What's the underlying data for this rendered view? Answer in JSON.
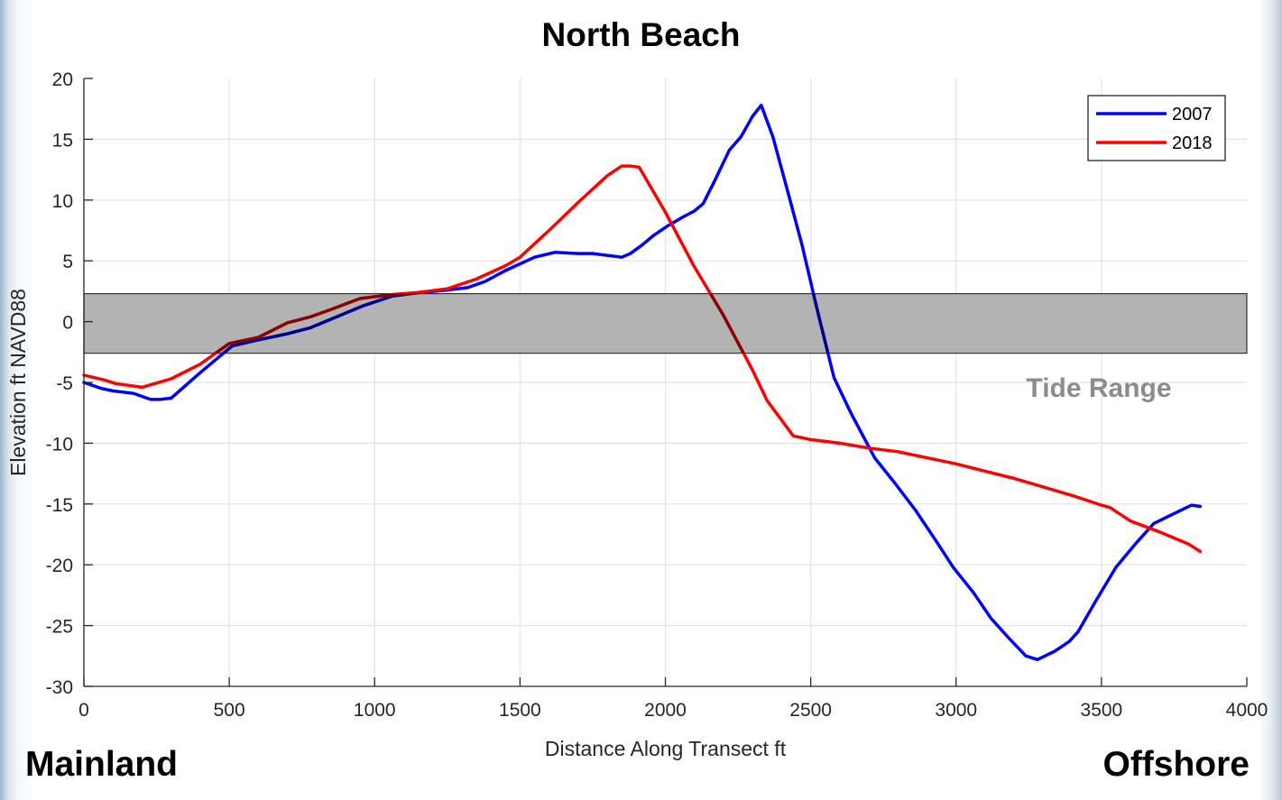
{
  "title": "North Beach",
  "left_corner_label": "Mainland",
  "right_corner_label": "Offshore",
  "chart_data": {
    "type": "line",
    "xlabel": "Distance Along Transect ft",
    "ylabel": "Elevation ft NAVD88",
    "xlim": [
      0,
      4000
    ],
    "ylim": [
      -30,
      20
    ],
    "xticks": [
      0,
      500,
      1000,
      1500,
      2000,
      2500,
      3000,
      3500,
      4000
    ],
    "yticks": [
      20,
      15,
      10,
      5,
      0,
      -5,
      -10,
      -15,
      -20,
      -25,
      -30
    ],
    "grid": true,
    "legend": "top-right",
    "band": {
      "label": "Tide Range",
      "ymin": -2.6,
      "ymax": 2.3,
      "color": "#b3b3b3"
    },
    "series": [
      {
        "name": "2007",
        "color": "#0000ff",
        "x": [
          0,
          60,
          100,
          170,
          230,
          260,
          300,
          400,
          510,
          600,
          700,
          780,
          850,
          960,
          1060,
          1160,
          1250,
          1320,
          1380,
          1450,
          1550,
          1620,
          1700,
          1750,
          1850,
          1880,
          1920,
          1960,
          2010,
          2060,
          2100,
          2130,
          2170,
          2220,
          2260,
          2300,
          2330,
          2370,
          2420,
          2470,
          2520,
          2580,
          2640,
          2720,
          2790,
          2860,
          2930,
          2990,
          3060,
          3120,
          3180,
          3240,
          3280,
          3340,
          3390,
          3420,
          3480,
          3550,
          3620,
          3680,
          3740,
          3810,
          3840
        ],
        "y": [
          -5.0,
          -5.5,
          -5.7,
          -5.9,
          -6.4,
          -6.4,
          -6.3,
          -4.2,
          -2.0,
          -1.5,
          -1.0,
          -0.5,
          0.2,
          1.3,
          2.1,
          2.4,
          2.6,
          2.8,
          3.3,
          4.2,
          5.3,
          5.7,
          5.6,
          5.6,
          5.3,
          5.6,
          6.3,
          7.1,
          7.9,
          8.6,
          9.1,
          9.7,
          11.6,
          14.1,
          15.2,
          16.9,
          17.8,
          15.2,
          10.8,
          6.3,
          1.2,
          -4.6,
          -7.6,
          -11.2,
          -13.3,
          -15.5,
          -18.0,
          -20.2,
          -22.3,
          -24.4,
          -26.0,
          -27.5,
          -27.8,
          -27.1,
          -26.3,
          -25.5,
          -23.0,
          -20.2,
          -18.2,
          -16.6,
          -15.9,
          -15.1,
          -15.2
        ]
      },
      {
        "name": "2018",
        "color": "#ff0000",
        "x": [
          0,
          70,
          110,
          200,
          300,
          400,
          500,
          600,
          700,
          780,
          850,
          950,
          1050,
          1150,
          1250,
          1350,
          1450,
          1500,
          1600,
          1700,
          1800,
          1850,
          1880,
          1910,
          2000,
          2100,
          2200,
          2300,
          2350,
          2440,
          2500,
          2600,
          2700,
          2800,
          2900,
          3000,
          3100,
          3200,
          3300,
          3400,
          3500,
          3530,
          3600,
          3700,
          3800,
          3840
        ],
        "y": [
          -4.4,
          -4.8,
          -5.1,
          -5.4,
          -4.7,
          -3.5,
          -1.8,
          -1.3,
          -0.1,
          0.4,
          1.0,
          1.9,
          2.2,
          2.4,
          2.7,
          3.5,
          4.6,
          5.3,
          7.5,
          9.8,
          12.0,
          12.8,
          12.8,
          12.7,
          9.0,
          4.5,
          0.5,
          -4.0,
          -6.5,
          -9.4,
          -9.7,
          -10.0,
          -10.4,
          -10.7,
          -11.2,
          -11.7,
          -12.3,
          -12.9,
          -13.6,
          -14.3,
          -15.1,
          -15.3,
          -16.4,
          -17.3,
          -18.3,
          -18.9
        ]
      }
    ]
  }
}
